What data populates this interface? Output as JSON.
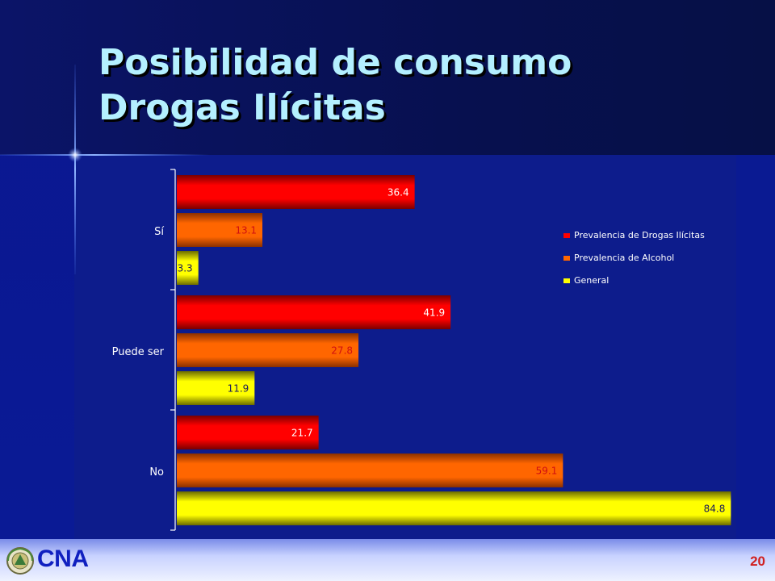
{
  "slide": {
    "title_line1": "Posibilidad de consumo",
    "title_line2": "Drogas Ilícitas",
    "logo": "CNA",
    "page_number": "20",
    "logo_icon": "seal-icon"
  },
  "colors": {
    "title": "#b4f0ff",
    "drogas": "#ff0000",
    "alcohol": "#ff6600",
    "general": "#ffff00"
  },
  "chart_data": {
    "type": "bar",
    "orientation": "horizontal",
    "categories": [
      "Sí",
      "Puede ser",
      "No"
    ],
    "series": [
      {
        "name": "Prevalencia de Drogas Ilícitas",
        "values": [
          36.4,
          41.9,
          21.7
        ]
      },
      {
        "name": "Prevalencia de Alcohol",
        "values": [
          13.1,
          27.8,
          59.1
        ]
      },
      {
        "name": "General",
        "values": [
          3.3,
          11.9,
          84.8
        ]
      }
    ],
    "xlim": [
      0,
      85
    ],
    "legend_position": "right",
    "data_labels": true
  }
}
